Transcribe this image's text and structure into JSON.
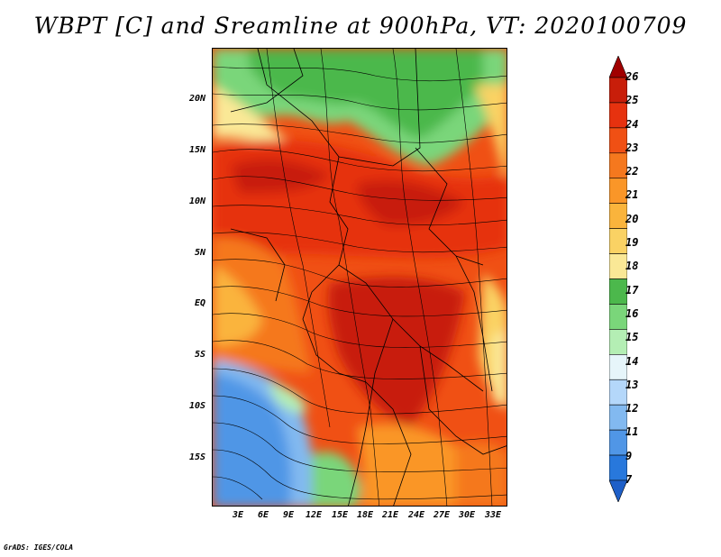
{
  "title": "WBPT [C] and Sreamline at 900hPa, VT: 2020100709",
  "credit": "GrADS: IGES/COLA",
  "map": {
    "lat_labels": [
      "20N",
      "15N",
      "10N",
      "5N",
      "EQ",
      "5S",
      "10S",
      "15S"
    ],
    "lon_labels": [
      "3E",
      "6E",
      "9E",
      "12E",
      "15E",
      "18E",
      "21E",
      "24E",
      "27E",
      "30E",
      "33E"
    ]
  },
  "colorbar": {
    "levels": [
      "26",
      "25",
      "24",
      "23",
      "22",
      "21",
      "20",
      "19",
      "18",
      "17",
      "16",
      "15",
      "14",
      "13",
      "12",
      "11",
      "9",
      "7"
    ],
    "colors": [
      "#a00000",
      "#c81e0a",
      "#e6320f",
      "#f05014",
      "#f5781e",
      "#fa9628",
      "#fab43c",
      "#fad264",
      "#fae896",
      "#4cb84c",
      "#7ad67a",
      "#b4eeb4",
      "#e6f5fa",
      "#b4d7fa",
      "#82b9f0",
      "#5096e6",
      "#2878dc",
      "#1e5fc8"
    ]
  }
}
